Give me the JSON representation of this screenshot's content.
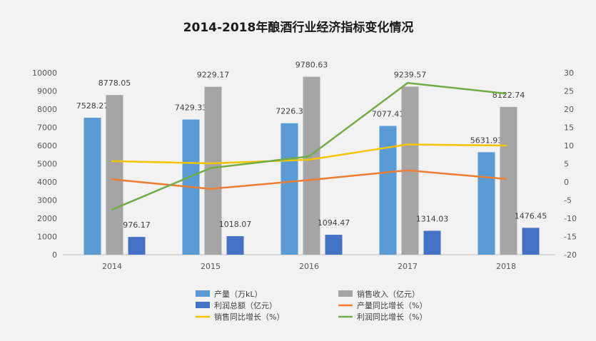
{
  "chart_data": {
    "type": "bar",
    "title": "2014-2018年酿酒行业经济指标变化情况",
    "categories": [
      "2014",
      "2015",
      "2016",
      "2017",
      "2018"
    ],
    "ylim": [
      0,
      10000
    ],
    "y_ticks": [
      "10000",
      "9000",
      "8000",
      "7000",
      "6000",
      "5000",
      "4000",
      "3000",
      "2000",
      "1000",
      "0"
    ],
    "y2lim": [
      -20,
      30
    ],
    "y2_ticks": [
      "30",
      "25",
      "20",
      "15",
      "10",
      "5",
      "0",
      "-5",
      "-10",
      "-15",
      "-20"
    ],
    "grid": false,
    "legend_position": "bottom",
    "bar_series": [
      {
        "name": "产量（万kL）",
        "color": "#5b9bd5",
        "values": [
          7528.27,
          7429.33,
          7226.3,
          7077.41,
          5631.93
        ],
        "labels": [
          "7528.27",
          "7429.33",
          "7226.3",
          "7077.41",
          "5631.93"
        ]
      },
      {
        "name": "销售收入（亿元）",
        "color": "#a5a5a5",
        "values": [
          8778.05,
          9229.17,
          9780.63,
          9239.57,
          8122.74
        ],
        "labels": [
          "8778.05",
          "9229.17",
          "9780.63",
          "9239.57",
          "8122.74"
        ]
      },
      {
        "name": "利润总额（亿元）",
        "color": "#4472c4",
        "values": [
          976.17,
          1018.07,
          1094.47,
          1314.03,
          1476.45
        ],
        "labels": [
          "976.17",
          "1018.07",
          "1094.47",
          "1314.03",
          "1476.45"
        ]
      }
    ],
    "line_series": [
      {
        "name": "产量同比增长（%）",
        "color": "#ed7d31",
        "axis": "secondary",
        "values": [
          0.7,
          -1.9,
          0.5,
          3.2,
          0.8
        ]
      },
      {
        "name": "销售同比增长（%）",
        "color": "#f5c400",
        "axis": "secondary",
        "values": [
          5.7,
          5.1,
          6.1,
          10.3,
          10.0
        ]
      },
      {
        "name": "利润同比增长（%）",
        "color": "#70ad47",
        "axis": "secondary",
        "values": [
          -7.6,
          3.8,
          7.0,
          27.2,
          24.3
        ]
      }
    ]
  }
}
